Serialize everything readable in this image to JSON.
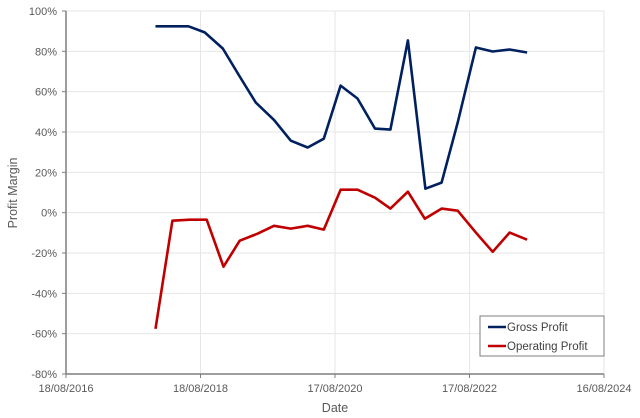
{
  "chart_data": {
    "type": "line",
    "title": "",
    "xlabel": "Date",
    "ylabel": "Profit Margin",
    "x_axis": {
      "type": "date",
      "ticks": [
        "18/08/2016",
        "18/08/2018",
        "17/08/2020",
        "17/08/2022",
        "16/08/2024"
      ],
      "range": [
        "18/08/2016",
        "16/08/2024"
      ]
    },
    "y_axis": {
      "ticks": [
        "-80%",
        "-60%",
        "-40%",
        "-20%",
        "0%",
        "20%",
        "40%",
        "60%",
        "80%",
        "100%"
      ],
      "tick_values": [
        -80,
        -60,
        -40,
        -20,
        0,
        20,
        40,
        60,
        80,
        100
      ],
      "ylim": [
        -80,
        100
      ]
    },
    "grid": true,
    "legend_position": "bottom-right-inside",
    "series": [
      {
        "name": "Gross Profit",
        "color": "#002060",
        "x_years": [
          2017.96,
          2018.45,
          2018.69,
          2018.96,
          2019.21,
          2019.45,
          2019.72,
          2019.97,
          2020.22,
          2020.46,
          2020.71,
          2020.96,
          2021.22,
          2021.45,
          2021.71,
          2021.97,
          2022.21,
          2022.45,
          2022.72,
          2022.97,
          2023.22,
          2023.48
        ],
        "values": [
          92.4,
          92.4,
          89.4,
          81.4,
          67.5,
          54.6,
          46,
          35.7,
          32.3,
          36.7,
          63,
          56.6,
          41.7,
          41.2,
          85.4,
          11.9,
          14.9,
          44.7,
          81.9,
          79.9,
          80.9,
          79.4
        ]
      },
      {
        "name": "Operating Profit",
        "color": "#C00000",
        "x_years": [
          2017.96,
          2018.21,
          2018.47,
          2018.72,
          2018.97,
          2019.21,
          2019.48,
          2019.72,
          2019.97,
          2020.22,
          2020.46,
          2020.71,
          2020.96,
          2021.22,
          2021.45,
          2021.71,
          2021.96,
          2022.21,
          2022.45,
          2022.72,
          2022.97,
          2023.22,
          2023.48
        ],
        "values": [
          -57.6,
          -4,
          -3.5,
          -3.5,
          -26.8,
          -13.9,
          -10.4,
          -6.5,
          -7.9,
          -6.5,
          -8.4,
          11.4,
          11.4,
          7.4,
          2,
          10.4,
          -3,
          2,
          1,
          -9.9,
          -19.4,
          -9.9,
          -13.4
        ]
      }
    ]
  },
  "legend": {
    "items": [
      {
        "label": "Gross Profit",
        "color": "#002060"
      },
      {
        "label": "Operating Profit",
        "color": "#C00000"
      }
    ]
  }
}
